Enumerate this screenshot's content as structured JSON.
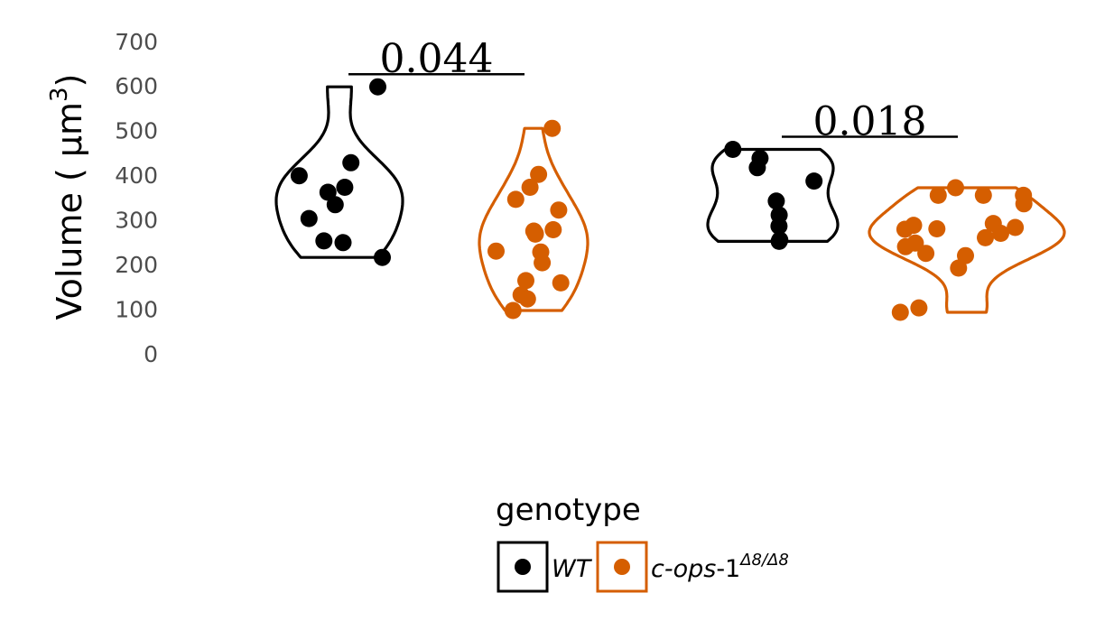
{
  "chart_data": {
    "type": "violin",
    "ylabel": "Volume ( μm",
    "ylabel_sup": "3",
    "ylabel_close": ")",
    "ylim": [
      0,
      700
    ],
    "yticks": [
      0,
      100,
      200,
      300,
      400,
      500,
      600,
      700
    ],
    "grid": false,
    "legend": {
      "position": "bottom",
      "title": "genotype",
      "entries": [
        {
          "label": "WT",
          "color": "#000000"
        },
        {
          "label_italic": "c-ops",
          "label_plain": "-1",
          "label_sup": "Δ8/Δ8",
          "color": "#d55e00"
        }
      ]
    },
    "comparisons": [
      {
        "label": "0.044",
        "groups": [
          0,
          1
        ]
      },
      {
        "label": "0.018",
        "groups": [
          2,
          3
        ]
      }
    ],
    "groups": [
      {
        "series": "WT",
        "color": "#000000",
        "values": [
          598,
          399,
          373,
          362,
          334,
          428,
          303,
          253,
          249,
          216
        ]
      },
      {
        "series": "c-ops-1",
        "color": "#d55e00",
        "values": [
          505,
          402,
          373,
          346,
          322,
          278,
          275,
          268,
          270,
          230,
          228,
          204,
          164,
          159,
          132,
          123,
          97
        ]
      },
      {
        "series": "WT",
        "color": "#000000",
        "values": [
          458,
          438,
          417,
          387,
          342,
          311,
          286,
          255,
          252
        ]
      },
      {
        "series": "c-ops-1",
        "color": "#d55e00",
        "values": [
          372,
          355,
          355,
          355,
          336,
          292,
          288,
          283,
          279,
          280,
          270,
          260,
          248,
          240,
          225,
          220,
          192,
          103,
          93
        ]
      }
    ]
  }
}
